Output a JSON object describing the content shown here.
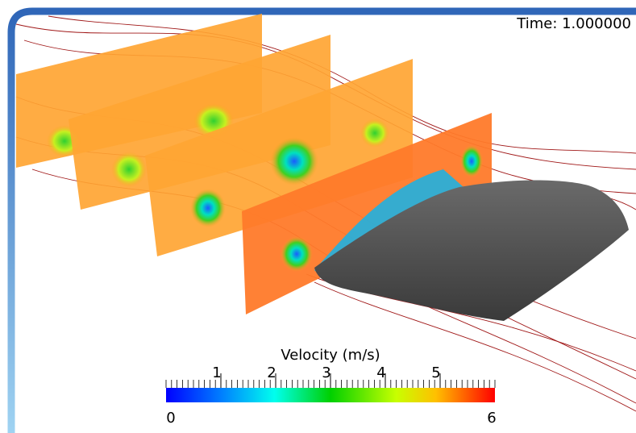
{
  "time_label": "Time: 1.000000",
  "colorbar": {
    "title": "Velocity (m/s)",
    "range": [
      0,
      6
    ],
    "ticks": [
      1,
      2,
      3,
      4,
      5
    ]
  }
}
